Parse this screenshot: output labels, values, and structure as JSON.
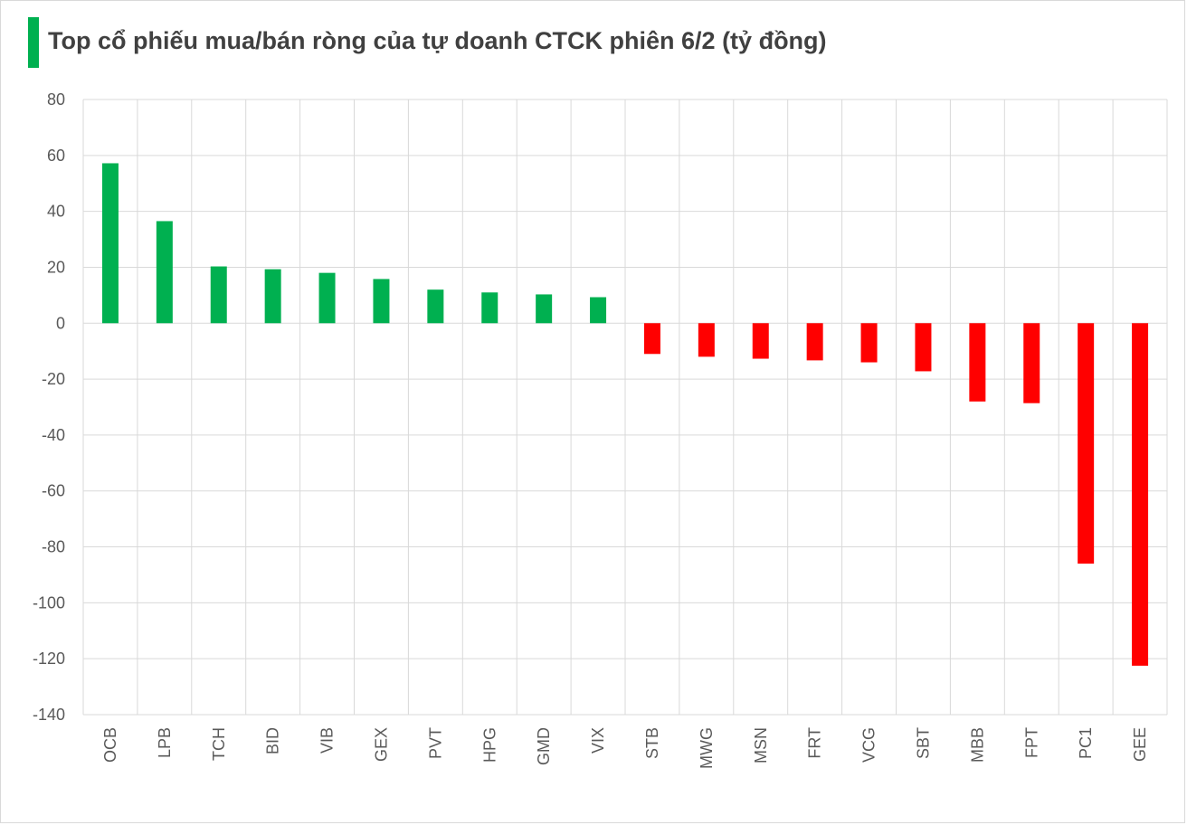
{
  "title": "Top cổ phiếu mua/bán ròng của tự doanh CTCK phiên 6/2 (tỷ đồng)",
  "colors": {
    "accent": "#00B050",
    "positive": "#00B050",
    "negative": "#FF0000",
    "grid": "#D9D9D9",
    "text": "#595959"
  },
  "chart_data": {
    "type": "bar",
    "title": "Top cổ phiếu mua/bán ròng của tự doanh CTCK phiên 6/2 (tỷ đồng)",
    "xlabel": "",
    "ylabel": "",
    "categories": [
      "OCB",
      "LPB",
      "TCH",
      "BID",
      "VIB",
      "GEX",
      "PVT",
      "HPG",
      "GMD",
      "VIX",
      "STB",
      "MWG",
      "MSN",
      "FRT",
      "VCG",
      "SBT",
      "MBB",
      "FPT",
      "PC1",
      "GEE"
    ],
    "values": [
      57.2,
      36.5,
      20.3,
      19.3,
      18.0,
      15.8,
      12.0,
      11.0,
      10.3,
      9.3,
      -11.0,
      -12.0,
      -12.7,
      -13.3,
      -14.0,
      -17.2,
      -28.0,
      -28.6,
      -86.0,
      -122.5
    ],
    "ylim": [
      -140,
      80
    ],
    "yticks": [
      80,
      60,
      40,
      20,
      0,
      -20,
      -40,
      -60,
      -80,
      -100,
      -120,
      -140
    ],
    "grid": true,
    "legend": "none"
  }
}
